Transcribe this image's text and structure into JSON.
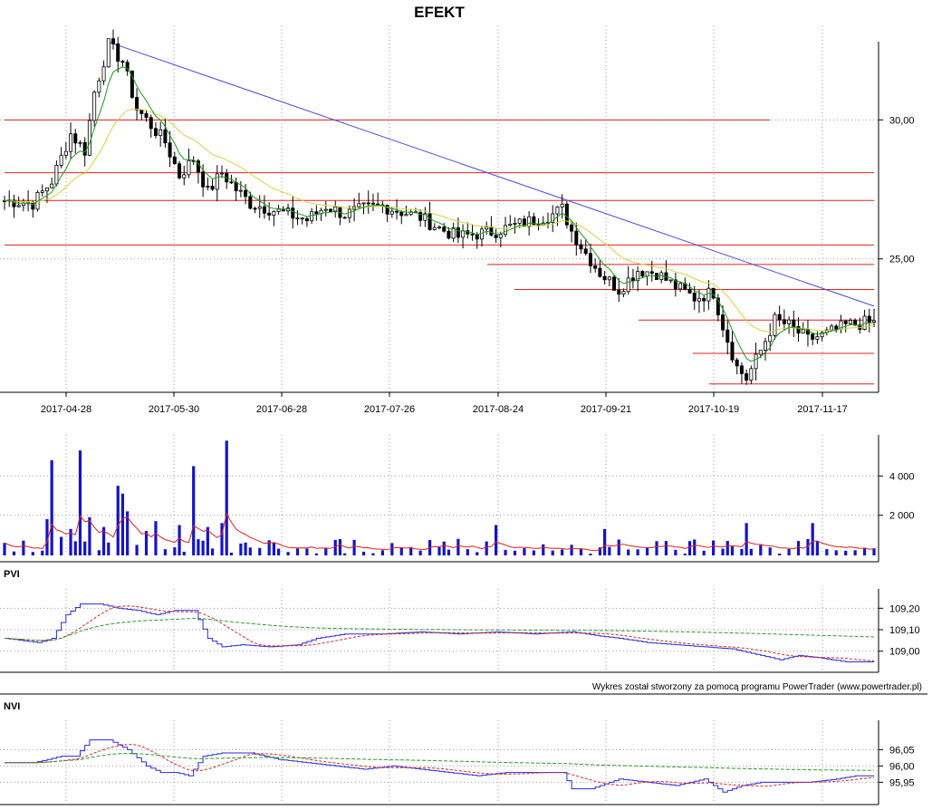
{
  "chart_data": [
    {
      "type": "candlestick",
      "title": "EFEKT",
      "x_tick_labels": [
        "2017-04-28",
        "2017-05-30",
        "2017-06-28",
        "2017-07-26",
        "2017-08-24",
        "2017-09-21",
        "2017-10-19",
        "2017-11-17"
      ],
      "y_tick_labels": [
        "30,00",
        "25,00"
      ],
      "y_ticks": [
        30,
        25
      ],
      "ylim": [
        20.2,
        33.4
      ],
      "grid": true,
      "close_keypoints": [
        [
          0,
          27.1
        ],
        [
          6,
          27.0
        ],
        [
          10,
          27.8
        ],
        [
          14,
          29.5
        ],
        [
          17,
          28.9
        ],
        [
          19,
          31.0
        ],
        [
          22,
          32.7
        ],
        [
          25,
          32.1
        ],
        [
          28,
          30.4
        ],
        [
          31,
          29.8
        ],
        [
          34,
          29.2
        ],
        [
          37,
          28.0
        ],
        [
          40,
          28.6
        ],
        [
          43,
          27.4
        ],
        [
          46,
          28.1
        ],
        [
          49,
          27.5
        ],
        [
          52,
          27.0
        ],
        [
          56,
          26.8
        ],
        [
          60,
          26.6
        ],
        [
          64,
          26.4
        ],
        [
          68,
          26.9
        ],
        [
          72,
          26.6
        ],
        [
          76,
          26.8
        ],
        [
          80,
          26.9
        ],
        [
          84,
          26.7
        ],
        [
          88,
          26.5
        ],
        [
          92,
          26.1
        ],
        [
          96,
          25.8
        ],
        [
          100,
          25.9
        ],
        [
          104,
          26.0
        ],
        [
          108,
          26.2
        ],
        [
          112,
          26.4
        ],
        [
          116,
          26.6
        ],
        [
          118,
          26.8
        ],
        [
          120,
          26.0
        ],
        [
          123,
          25.2
        ],
        [
          126,
          24.5
        ],
        [
          130,
          23.9
        ],
        [
          134,
          24.6
        ],
        [
          138,
          24.5
        ],
        [
          142,
          24.0
        ],
        [
          146,
          23.6
        ],
        [
          150,
          23.8
        ],
        [
          152,
          22.6
        ],
        [
          155,
          21.1
        ],
        [
          157,
          20.7
        ],
        [
          160,
          21.7
        ],
        [
          163,
          22.8
        ],
        [
          166,
          22.6
        ],
        [
          170,
          22.1
        ],
        [
          174,
          22.3
        ],
        [
          178,
          22.6
        ],
        [
          182,
          22.7
        ]
      ],
      "sma_short_period_note": "",
      "support_resistance_levels": [
        30.0,
        28.1,
        27.1,
        25.5,
        24.8,
        23.9,
        22.8,
        21.6,
        20.5
      ],
      "trendline": {
        "from": [
          22,
          32.8
        ],
        "to": [
          184,
          23.3
        ]
      },
      "line_colors": {
        "short_ma": "#1a9a1a",
        "long_ma": "#d8d040",
        "levels": "#e02020",
        "trendline": "#4a4ae0"
      }
    },
    {
      "type": "bar",
      "y_tick_labels": [
        "4 000",
        "2 000"
      ],
      "y_ticks": [
        4000,
        2000
      ],
      "ylim": [
        0,
        6000
      ],
      "spikes": [
        [
          9,
          1800
        ],
        [
          10,
          4800
        ],
        [
          12,
          900
        ],
        [
          14,
          1300
        ],
        [
          16,
          5300
        ],
        [
          18,
          1900
        ],
        [
          21,
          1400
        ],
        [
          24,
          3500
        ],
        [
          25,
          3100
        ],
        [
          26,
          2200
        ],
        [
          30,
          1200
        ],
        [
          32,
          1700
        ],
        [
          37,
          1500
        ],
        [
          40,
          4500
        ],
        [
          43,
          1400
        ],
        [
          46,
          1600
        ],
        [
          47,
          5800
        ],
        [
          104,
          1500
        ],
        [
          127,
          1300
        ],
        [
          157,
          1600
        ],
        [
          171,
          1600
        ]
      ],
      "baseline_values": [
        200,
        800
      ],
      "color": "#1414c8",
      "ma_color": "#e02020"
    },
    {
      "type": "line",
      "panel_label": "PVI",
      "y_tick_labels": [
        "109,20",
        "109,10",
        "109,00"
      ],
      "y_ticks": [
        109.2,
        109.1,
        109.0
      ],
      "ylim": [
        108.91,
        109.29
      ],
      "series_keypoints": [
        [
          0,
          109.06
        ],
        [
          7,
          109.04
        ],
        [
          10,
          109.06
        ],
        [
          13,
          109.17
        ],
        [
          16,
          109.22
        ],
        [
          20,
          109.22
        ],
        [
          24,
          109.2
        ],
        [
          28,
          109.19
        ],
        [
          32,
          109.17
        ],
        [
          36,
          109.19
        ],
        [
          40,
          109.19
        ],
        [
          43,
          109.06
        ],
        [
          46,
          109.02
        ],
        [
          50,
          109.03
        ],
        [
          56,
          109.02
        ],
        [
          62,
          109.03
        ],
        [
          66,
          109.06
        ],
        [
          72,
          109.08
        ],
        [
          80,
          109.08
        ],
        [
          88,
          109.09
        ],
        [
          96,
          109.08
        ],
        [
          104,
          109.09
        ],
        [
          112,
          109.08
        ],
        [
          120,
          109.09
        ],
        [
          126,
          109.07
        ],
        [
          130,
          109.06
        ],
        [
          136,
          109.04
        ],
        [
          142,
          109.03
        ],
        [
          148,
          109.02
        ],
        [
          154,
          109.01
        ],
        [
          160,
          108.98
        ],
        [
          164,
          108.96
        ],
        [
          168,
          108.98
        ],
        [
          172,
          108.97
        ],
        [
          178,
          108.95
        ],
        [
          184,
          108.95
        ]
      ],
      "colors": {
        "value": "#2a2ad8",
        "signal": "#e02020",
        "long": "#2a9a2a"
      }
    },
    {
      "type": "line",
      "panel_label": "NVI",
      "y_tick_labels": [
        "96,05",
        "96,00",
        "95,95"
      ],
      "y_ticks": [
        96.05,
        96.0,
        95.95
      ],
      "ylim": [
        95.89,
        96.14
      ],
      "series_keypoints": [
        [
          0,
          96.01
        ],
        [
          6,
          96.01
        ],
        [
          9,
          96.02
        ],
        [
          12,
          96.03
        ],
        [
          15,
          96.03
        ],
        [
          18,
          96.08
        ],
        [
          22,
          96.08
        ],
        [
          26,
          96.05
        ],
        [
          30,
          96.0
        ],
        [
          33,
          95.98
        ],
        [
          36,
          95.98
        ],
        [
          39,
          95.97
        ],
        [
          42,
          96.03
        ],
        [
          46,
          96.04
        ],
        [
          52,
          96.04
        ],
        [
          58,
          96.02
        ],
        [
          64,
          96.01
        ],
        [
          70,
          96.0
        ],
        [
          76,
          95.99
        ],
        [
          82,
          96.0
        ],
        [
          88,
          95.99
        ],
        [
          94,
          95.98
        ],
        [
          100,
          95.97
        ],
        [
          106,
          95.98
        ],
        [
          112,
          95.98
        ],
        [
          118,
          95.98
        ],
        [
          120,
          95.93
        ],
        [
          124,
          95.93
        ],
        [
          130,
          95.96
        ],
        [
          136,
          95.95
        ],
        [
          142,
          95.94
        ],
        [
          148,
          95.96
        ],
        [
          152,
          95.92
        ],
        [
          156,
          95.94
        ],
        [
          160,
          95.95
        ],
        [
          166,
          95.95
        ],
        [
          170,
          95.95
        ],
        [
          176,
          95.96
        ],
        [
          180,
          95.97
        ],
        [
          184,
          95.97
        ]
      ],
      "colors": {
        "value": "#2a2ad8",
        "signal": "#e02020",
        "long": "#2a9a2a"
      }
    }
  ],
  "footer": {
    "credit": "Wykres został stworzony za pomocą programu PowerTrader (www.powertrader.pl)"
  }
}
